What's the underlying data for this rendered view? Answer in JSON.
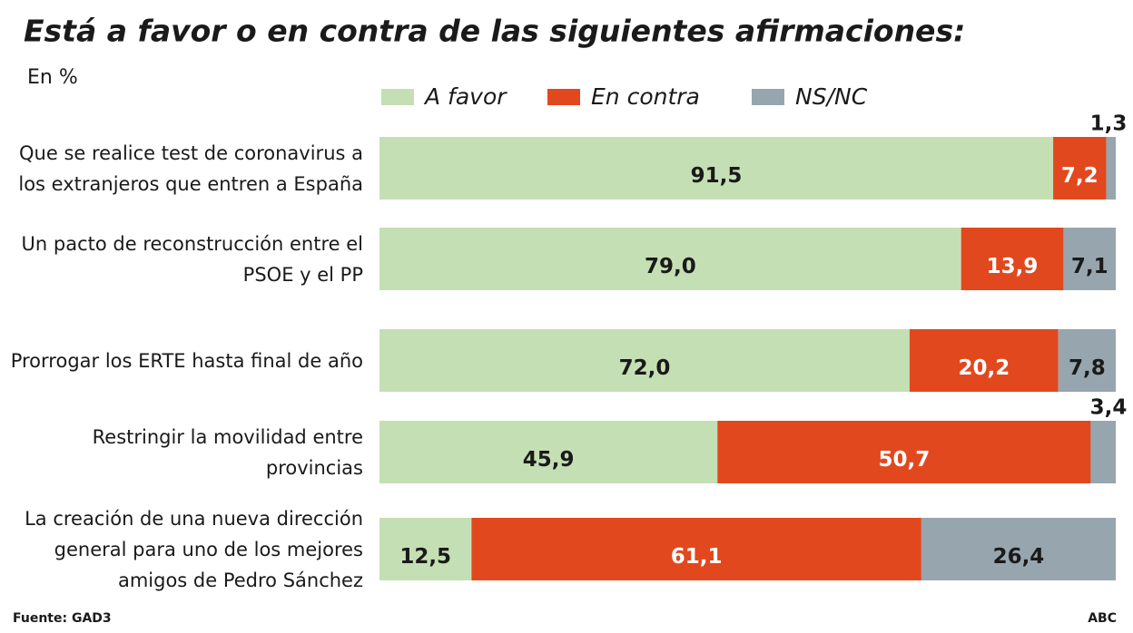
{
  "chart_data": {
    "type": "stacked-barh",
    "title": "Está a favor o en contra de las siguientes afirmaciones:",
    "subtitle": "En %",
    "categories": [
      "Que se realice test de coronavirus a los extranjeros que entren a España",
      "Un pacto de reconstrucción entre el PSOE y el PP",
      "Prorrogar los ERTE hasta final de año",
      "Restringir la movilidad entre provincias",
      "La creación de una nueva dirección general para uno de los mejores amigos de Pedro Sánchez"
    ],
    "xlim": [
      0,
      100
    ],
    "series": [
      {
        "name": "A favor",
        "color": "#c5dfb4",
        "values": [
          91.5,
          79.0,
          72.0,
          45.9,
          12.5
        ],
        "value_labels": [
          "91,5",
          "79,0",
          "72,0",
          "45,9",
          "12,5"
        ]
      },
      {
        "name": "En contra",
        "color": "#e2481e",
        "values": [
          7.2,
          13.9,
          20.2,
          50.7,
          61.1
        ],
        "value_labels": [
          "7,2",
          "13,9",
          "20,2",
          "50,7",
          "61,1"
        ]
      },
      {
        "name": "NS/NC",
        "color": "#97a6ae",
        "values": [
          1.3,
          7.1,
          7.8,
          3.4,
          26.4
        ],
        "value_labels": [
          "1,3",
          "7,1",
          "7,8",
          "3,4",
          "26,4"
        ]
      }
    ],
    "source": "Fuente: GAD3",
    "credit": "ABC"
  }
}
